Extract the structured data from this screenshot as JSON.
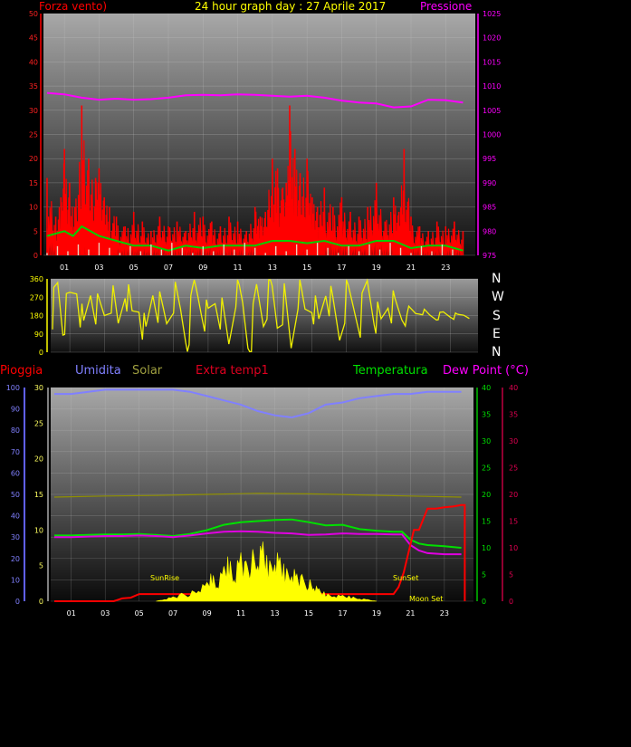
{
  "header": {
    "title": "24 hour graph day : 27 Aprile 2017",
    "left_label": "Forza vento)",
    "right_label": "Pressione"
  },
  "legend": {
    "pioggia": "Pioggia",
    "umidita": "Umidita",
    "solar": "Solar",
    "extra": "Extra temp1",
    "temperatura": "Temperatura",
    "dewpoint": "Dew Point (°C)"
  },
  "compass": [
    "N",
    "W",
    "S",
    "E",
    "N"
  ],
  "solar_labels": {
    "sunrise": "SunRise",
    "sunset": "SunSet",
    "moonset": "Moon Set"
  },
  "colors": {
    "wind_speed": "#ff0000",
    "wind_avg": "#00d000",
    "gust_base": "#e8ffe8",
    "pressure": "#ff00ff",
    "direction": "#f0f000",
    "humidity": "#8080ff",
    "solar": "#ffff00",
    "solar_max": "#909000",
    "temperature": "#00e000",
    "dewpoint": "#e000e0",
    "extra": "#ff0000",
    "rain": "#ff0000",
    "pioggia_axis": "#6060ff",
    "temp_axis": "#00c000",
    "dew_axis": "#c00040"
  },
  "chart_data": [
    {
      "type": "line",
      "name": "wind-pressure",
      "x_ticks": [
        "01",
        "03",
        "05",
        "07",
        "09",
        "11",
        "13",
        "15",
        "17",
        "19",
        "21",
        "23"
      ],
      "xlim": [
        0,
        24.5
      ],
      "ylim_left": [
        0,
        50
      ],
      "yticks_left": [
        0,
        5,
        10,
        15,
        20,
        25,
        30,
        35,
        40,
        45,
        50
      ],
      "ylim_right": [
        975,
        1025
      ],
      "yticks_right": [
        975,
        980,
        985,
        990,
        995,
        1000,
        1005,
        1010,
        1015,
        1020,
        1025
      ],
      "series": [
        {
          "name": "Forza vento)",
          "axis": "left",
          "style": "spikes",
          "color_key": "wind_speed",
          "x": [
            0,
            0.5,
            0.8,
            1,
            1.3,
            1.6,
            2,
            2.4,
            2.8,
            3,
            3.3,
            3.6,
            4,
            4.5,
            5,
            5.5,
            6,
            6.5,
            7,
            7.5,
            8,
            8.5,
            9,
            9.5,
            10,
            10.5,
            11,
            11.5,
            12,
            12.3,
            12.6,
            13,
            13.3,
            13.6,
            13.8,
            14,
            14.3,
            14.6,
            15,
            15.3,
            15.6,
            16,
            16.5,
            17,
            17.5,
            18,
            18.5,
            19,
            19.5,
            20,
            20.3,
            20.6,
            21,
            21.5,
            22,
            22.5,
            23,
            23.5,
            24
          ],
          "y": [
            16,
            8,
            12,
            22,
            15,
            10,
            31,
            20,
            16,
            18,
            12,
            10,
            8,
            6,
            9,
            7,
            5,
            8,
            6,
            7,
            5,
            9,
            8,
            7,
            6,
            8,
            7,
            5,
            10,
            8,
            9,
            20,
            18,
            14,
            15,
            31,
            22,
            17,
            20,
            12,
            10,
            14,
            10,
            12,
            9,
            8,
            10,
            15,
            7,
            12,
            9,
            22,
            8,
            6,
            5,
            7,
            6,
            7,
            5
          ]
        },
        {
          "name": "wind average",
          "axis": "left",
          "style": "line",
          "color_key": "wind_avg",
          "x": [
            0,
            1,
            1.5,
            2,
            2.5,
            3,
            4,
            5,
            6,
            7,
            8,
            9,
            10,
            11,
            12,
            13,
            14,
            15,
            16,
            17,
            18,
            19,
            20,
            21,
            22,
            23,
            24
          ],
          "y": [
            4,
            5,
            4,
            6,
            5,
            4,
            3,
            2,
            2,
            1,
            2,
            1.5,
            2,
            2,
            2,
            3,
            3,
            2.5,
            3,
            2,
            2,
            3,
            3,
            1.5,
            2,
            2,
            1
          ]
        },
        {
          "name": "Pressione",
          "axis": "right",
          "style": "line",
          "color_key": "pressure",
          "x": [
            0,
            1,
            2,
            3,
            4,
            5,
            6,
            7,
            8,
            9,
            10,
            11,
            12,
            13,
            14,
            15,
            16,
            17,
            18,
            19,
            20,
            21,
            22,
            23,
            24
          ],
          "y": [
            1008.6,
            1008.3,
            1007.6,
            1007.2,
            1007.4,
            1007.2,
            1007.3,
            1007.6,
            1008.1,
            1008.2,
            1008.1,
            1008.3,
            1008.2,
            1008.0,
            1007.8,
            1008.0,
            1007.6,
            1007.0,
            1006.6,
            1006.4,
            1005.6,
            1005.8,
            1007.2,
            1007.1,
            1006.6
          ]
        }
      ]
    },
    {
      "type": "line",
      "name": "wind-direction",
      "x_ticks": [],
      "xlim": [
        0,
        24.5
      ],
      "ylim": [
        0,
        360
      ],
      "yticks": [
        0,
        90,
        180,
        270,
        360
      ],
      "series": [
        {
          "name": "direction",
          "color_key": "direction",
          "x": [
            0,
            0.3,
            0.6,
            1,
            1.4,
            1.8,
            2.2,
            2.6,
            3,
            3.4,
            3.8,
            4.2,
            4.6,
            5,
            5.4,
            5.8,
            6.2,
            6.6,
            7,
            7.4,
            7.8,
            8.2,
            8.6,
            9,
            9.4,
            9.8,
            10.2,
            10.6,
            11,
            11.4,
            11.8,
            12.2,
            12.6,
            13,
            13.4,
            13.8,
            14.2,
            14.6,
            15,
            15.4,
            15.8,
            16.2,
            16.6,
            17,
            17.4,
            17.8,
            18.2,
            18.6,
            19,
            19.4,
            19.8,
            20.2,
            20.6,
            21,
            21.4,
            21.8,
            22.2,
            22.6,
            23,
            23.4,
            23.8,
            24.2
          ],
          "y": [
            200,
            320,
            150,
            250,
            330,
            90,
            300,
            200,
            180,
            280,
            120,
            330,
            160,
            240,
            60,
            300,
            210,
            140,
            280,
            190,
            60,
            320,
            230,
            150,
            260,
            180,
            40,
            310,
            220,
            10,
            290,
            170,
            330,
            140,
            250,
            20,
            300,
            190,
            260,
            120,
            320,
            210,
            80,
            280,
            220,
            160,
            330,
            200,
            120,
            260,
            200,
            180,
            210,
            190,
            200,
            180,
            170,
            190,
            180,
            175,
            185,
            180
          ]
        }
      ]
    },
    {
      "type": "line",
      "name": "temperature-humidity",
      "x_ticks": [
        "01",
        "03",
        "05",
        "07",
        "09",
        "11",
        "13",
        "15",
        "17",
        "19",
        "21",
        "23"
      ],
      "xlim": [
        0,
        24.5
      ],
      "ylim_umidita": [
        0,
        100
      ],
      "yticks_umidita": [
        0,
        10,
        20,
        30,
        40,
        50,
        60,
        70,
        80,
        90,
        100
      ],
      "ylim_pioggia": [
        0,
        30
      ],
      "yticks_pioggia": [
        0,
        5,
        10,
        15,
        20,
        25,
        30
      ],
      "ylim_temperatura": [
        0,
        40
      ],
      "yticks_temperatura": [
        0,
        5,
        10,
        15,
        20,
        25,
        30,
        35,
        40
      ],
      "ylim_dewpoint": [
        0,
        40
      ],
      "yticks_dewpoint": [
        0,
        5,
        10,
        15,
        20,
        25,
        30,
        35,
        40
      ],
      "series": [
        {
          "name": "Umidita",
          "axis": "umidita",
          "color_key": "humidity",
          "x": [
            0,
            1,
            2,
            3,
            4,
            5,
            6,
            7,
            8,
            9,
            10,
            11,
            12,
            13,
            14,
            15,
            16,
            17,
            18,
            19,
            20,
            21,
            22,
            23,
            24
          ],
          "y": [
            97,
            97,
            98,
            99,
            99,
            99,
            99,
            99,
            98,
            96,
            94,
            92,
            89,
            87,
            86,
            88,
            92,
            93,
            95,
            96,
            97,
            97,
            98,
            98,
            98
          ]
        },
        {
          "name": "Solar",
          "axis": "temperatura",
          "color_key": "solar_max",
          "x": [
            0,
            3,
            6,
            9,
            12,
            15,
            18,
            21,
            24
          ],
          "y": [
            19.5,
            19.7,
            19.8,
            20,
            20.2,
            20.1,
            19.9,
            19.7,
            19.5
          ]
        },
        {
          "name": "Temperatura",
          "axis": "temperatura",
          "color_key": "temperature",
          "x": [
            0,
            1,
            2,
            3,
            4,
            5,
            6,
            7,
            8,
            9,
            10,
            11,
            12,
            13,
            14,
            15,
            16,
            17,
            18,
            19,
            20,
            20.5,
            21,
            21.5,
            22,
            23,
            24
          ],
          "y": [
            12.3,
            12.3,
            12.4,
            12.5,
            12.5,
            12.6,
            12.4,
            12.2,
            12.6,
            13.3,
            14.3,
            14.8,
            15,
            15.2,
            15.3,
            14.8,
            14.2,
            14.3,
            13.5,
            13.2,
            13,
            13,
            11.5,
            10.8,
            10.5,
            10.3,
            10
          ]
        },
        {
          "name": "Dew Point",
          "axis": "temperatura",
          "color_key": "dewpoint",
          "x": [
            0,
            1,
            2,
            3,
            4,
            5,
            6,
            7,
            8,
            9,
            10,
            11,
            12,
            13,
            14,
            15,
            16,
            17,
            18,
            19,
            20,
            20.5,
            21,
            21.5,
            22,
            23,
            24
          ],
          "y": [
            12,
            12,
            12.1,
            12.2,
            12.2,
            12.3,
            12.2,
            12,
            12.3,
            12.7,
            13,
            13.1,
            13,
            12.8,
            12.7,
            12.4,
            12.5,
            12.7,
            12.6,
            12.6,
            12.5,
            12.5,
            10.5,
            9.5,
            9,
            8.8,
            8.8
          ]
        },
        {
          "name": "Extra temp1",
          "axis": "pioggia",
          "color_key": "extra",
          "x": [
            0,
            2,
            3.5,
            4,
            4.5,
            5,
            6,
            7,
            8,
            9,
            10,
            12,
            14,
            16,
            17,
            18,
            19,
            20,
            20.3,
            20.6,
            21,
            21.2,
            21.5,
            22,
            22.5,
            23,
            23.5,
            24,
            24.2,
            24.2
          ],
          "y": [
            0,
            0,
            0,
            0.4,
            0.5,
            1,
            1,
            1,
            1,
            1,
            1,
            1,
            1,
            1,
            1,
            1,
            1,
            1,
            2,
            4,
            8,
            10,
            10,
            13,
            13,
            13.2,
            13.3,
            13.5,
            13.5,
            0
          ]
        },
        {
          "name": "solar radiation",
          "axis": "pioggia",
          "style": "area",
          "color_key": "solar",
          "x": [
            6,
            6.5,
            7,
            7.5,
            8,
            8.5,
            9,
            9.3,
            9.6,
            10,
            10.3,
            10.6,
            11,
            11.3,
            11.6,
            12,
            12.3,
            12.6,
            13,
            13.3,
            13.6,
            14,
            14.3,
            14.6,
            15,
            15.3,
            15.6,
            16,
            16.5,
            17,
            17.5,
            18,
            18.5,
            19
          ],
          "y": [
            0,
            0.4,
            0.8,
            1.2,
            1.4,
            2,
            3,
            4.5,
            3,
            6,
            7.5,
            5,
            9,
            6,
            8,
            7,
            9.5,
            6,
            8,
            7.5,
            5.5,
            6,
            5,
            4,
            3.5,
            2.5,
            2,
            1.2,
            1,
            1,
            0.8,
            0.5,
            0.3,
            0
          ]
        }
      ]
    }
  ]
}
